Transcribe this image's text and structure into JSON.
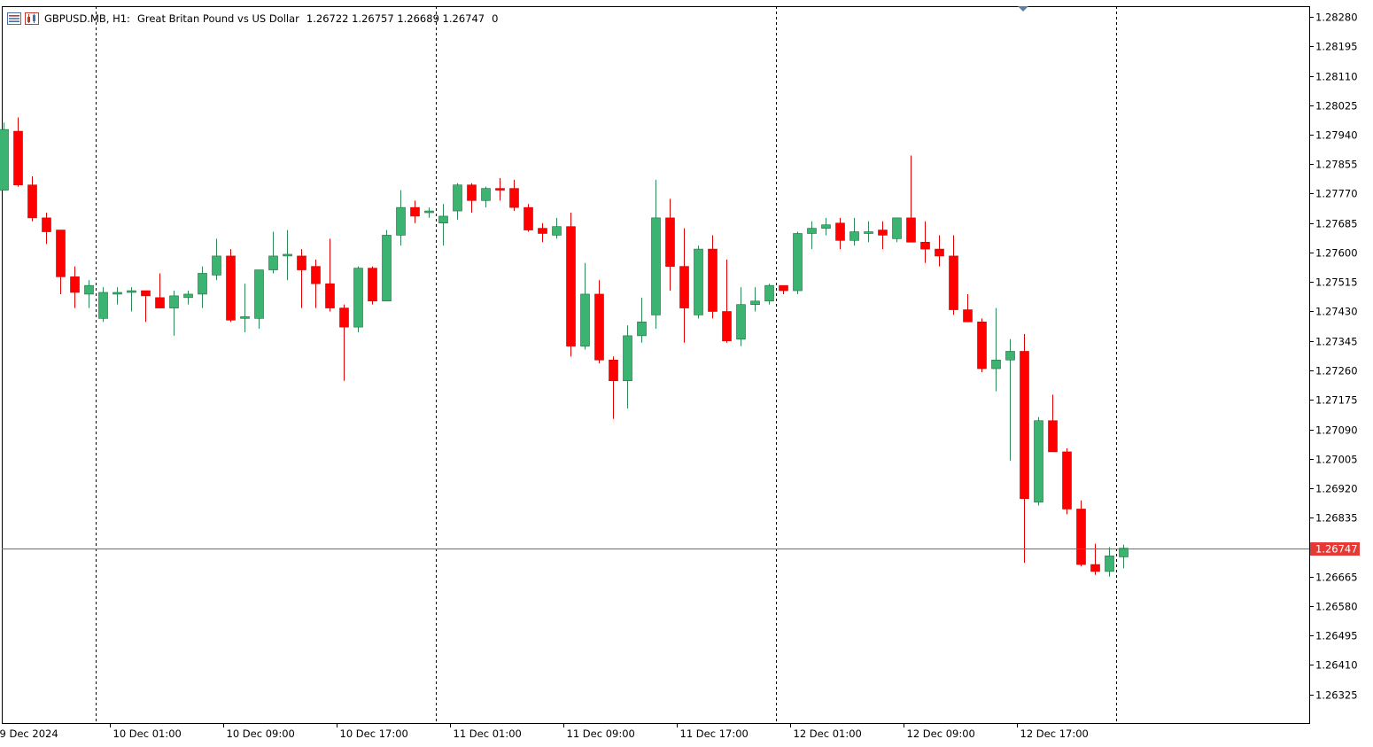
{
  "header": {
    "symbol": "GBPUSD.MB, H1:",
    "description": "Great Britan Pound vs US Dollar",
    "ohlc": "1.26722 1.26757 1.26689 1.26747",
    "spread": "0"
  },
  "colors": {
    "bull": "#3cb371",
    "bear": "#ff0000",
    "wick_bull": "#2e8b57",
    "wick_bear": "#e00000",
    "price_line": "#e53935",
    "grid": "#000000",
    "background": "#ffffff",
    "axis": "#000000"
  },
  "chart_data": {
    "type": "candlestick",
    "title": "GBPUSD.MB, H1",
    "current_price_label": "1.26747",
    "current_price": 1.26747,
    "ylim": [
      1.2624,
      1.2831
    ],
    "y_ticks": [
      "1.28280",
      "1.28195",
      "1.28110",
      "1.28025",
      "1.27940",
      "1.27855",
      "1.27770",
      "1.27685",
      "1.27600",
      "1.27515",
      "1.27430",
      "1.27345",
      "1.27260",
      "1.27175",
      "1.27090",
      "1.27005",
      "1.26920",
      "1.26835",
      "1.26665",
      "1.26580",
      "1.26495",
      "1.26410",
      "1.26325"
    ],
    "x_labels": [
      {
        "text": "9 Dec 2024",
        "index": -0.5
      },
      {
        "text": "10 Dec 01:00",
        "index": 7.5
      },
      {
        "text": "10 Dec 09:00",
        "index": 15.5
      },
      {
        "text": "10 Dec 17:00",
        "index": 23.5
      },
      {
        "text": "11 Dec 01:00",
        "index": 31.5
      },
      {
        "text": "11 Dec 09:00",
        "index": 39.5
      },
      {
        "text": "11 Dec 17:00",
        "index": 47.5
      },
      {
        "text": "12 Dec 01:00",
        "index": 55.5
      },
      {
        "text": "12 Dec 09:00",
        "index": 63.5
      },
      {
        "text": "12 Dec 17:00",
        "index": 71.5
      }
    ],
    "day_separators": [
      6.5,
      30.5,
      54.5,
      78.5
    ],
    "candles": [
      {
        "o": 1.2778,
        "h": 1.27975,
        "l": 1.2778,
        "c": 1.27955
      },
      {
        "o": 1.2795,
        "h": 1.2799,
        "l": 1.2779,
        "c": 1.27795
      },
      {
        "o": 1.27795,
        "h": 1.2782,
        "l": 1.2769,
        "c": 1.277
      },
      {
        "o": 1.277,
        "h": 1.27715,
        "l": 1.27625,
        "c": 1.2766
      },
      {
        "o": 1.27665,
        "h": 1.27665,
        "l": 1.2748,
        "c": 1.2753
      },
      {
        "o": 1.2753,
        "h": 1.2756,
        "l": 1.2744,
        "c": 1.27485
      },
      {
        "o": 1.2748,
        "h": 1.2752,
        "l": 1.2744,
        "c": 1.27505
      },
      {
        "o": 1.2741,
        "h": 1.275,
        "l": 1.274,
        "c": 1.27485
      },
      {
        "o": 1.2748,
        "h": 1.275,
        "l": 1.2745,
        "c": 1.27485
      },
      {
        "o": 1.27485,
        "h": 1.275,
        "l": 1.2743,
        "c": 1.2749
      },
      {
        "o": 1.2749,
        "h": 1.2749,
        "l": 1.274,
        "c": 1.27475
      },
      {
        "o": 1.2747,
        "h": 1.2754,
        "l": 1.2744,
        "c": 1.2744
      },
      {
        "o": 1.2744,
        "h": 1.2749,
        "l": 1.2736,
        "c": 1.27475
      },
      {
        "o": 1.2747,
        "h": 1.2749,
        "l": 1.2745,
        "c": 1.2748
      },
      {
        "o": 1.2748,
        "h": 1.2756,
        "l": 1.2744,
        "c": 1.2754
      },
      {
        "o": 1.27535,
        "h": 1.2764,
        "l": 1.2752,
        "c": 1.2759
      },
      {
        "o": 1.2759,
        "h": 1.2761,
        "l": 1.274,
        "c": 1.27405
      },
      {
        "o": 1.2741,
        "h": 1.2751,
        "l": 1.2737,
        "c": 1.27415
      },
      {
        "o": 1.2741,
        "h": 1.2755,
        "l": 1.2738,
        "c": 1.2755
      },
      {
        "o": 1.2755,
        "h": 1.2766,
        "l": 1.2754,
        "c": 1.2759
      },
      {
        "o": 1.2759,
        "h": 1.27665,
        "l": 1.2752,
        "c": 1.27595
      },
      {
        "o": 1.2759,
        "h": 1.2761,
        "l": 1.2744,
        "c": 1.2755
      },
      {
        "o": 1.2756,
        "h": 1.2758,
        "l": 1.2744,
        "c": 1.2751
      },
      {
        "o": 1.2751,
        "h": 1.2764,
        "l": 1.2743,
        "c": 1.2744
      },
      {
        "o": 1.2744,
        "h": 1.2745,
        "l": 1.2723,
        "c": 1.27385
      },
      {
        "o": 1.27385,
        "h": 1.2756,
        "l": 1.2737,
        "c": 1.27555
      },
      {
        "o": 1.27555,
        "h": 1.2756,
        "l": 1.2745,
        "c": 1.2746
      },
      {
        "o": 1.2746,
        "h": 1.27665,
        "l": 1.2746,
        "c": 1.2765
      },
      {
        "o": 1.2765,
        "h": 1.2778,
        "l": 1.2762,
        "c": 1.2773
      },
      {
        "o": 1.2773,
        "h": 1.2775,
        "l": 1.27685,
        "c": 1.27705
      },
      {
        "o": 1.27715,
        "h": 1.2773,
        "l": 1.277,
        "c": 1.2772
      },
      {
        "o": 1.27685,
        "h": 1.2774,
        "l": 1.2762,
        "c": 1.27705
      },
      {
        "o": 1.2772,
        "h": 1.278,
        "l": 1.27695,
        "c": 1.27795
      },
      {
        "o": 1.27795,
        "h": 1.278,
        "l": 1.27715,
        "c": 1.2775
      },
      {
        "o": 1.2775,
        "h": 1.2779,
        "l": 1.2773,
        "c": 1.27785
      },
      {
        "o": 1.27785,
        "h": 1.27815,
        "l": 1.2775,
        "c": 1.2778
      },
      {
        "o": 1.27785,
        "h": 1.2781,
        "l": 1.2772,
        "c": 1.2773
      },
      {
        "o": 1.2773,
        "h": 1.2774,
        "l": 1.2766,
        "c": 1.27665
      },
      {
        "o": 1.2767,
        "h": 1.27685,
        "l": 1.2763,
        "c": 1.27655
      },
      {
        "o": 1.2765,
        "h": 1.277,
        "l": 1.2764,
        "c": 1.27675
      },
      {
        "o": 1.27675,
        "h": 1.27715,
        "l": 1.273,
        "c": 1.2733
      },
      {
        "o": 1.2733,
        "h": 1.2757,
        "l": 1.2732,
        "c": 1.2748
      },
      {
        "o": 1.2748,
        "h": 1.2752,
        "l": 1.2728,
        "c": 1.2729
      },
      {
        "o": 1.2729,
        "h": 1.273,
        "l": 1.2712,
        "c": 1.2723
      },
      {
        "o": 1.2723,
        "h": 1.2739,
        "l": 1.2715,
        "c": 1.2736
      },
      {
        "o": 1.2736,
        "h": 1.2747,
        "l": 1.2734,
        "c": 1.274
      },
      {
        "o": 1.2742,
        "h": 1.2781,
        "l": 1.2738,
        "c": 1.277
      },
      {
        "o": 1.277,
        "h": 1.27755,
        "l": 1.2749,
        "c": 1.2756
      },
      {
        "o": 1.2756,
        "h": 1.2767,
        "l": 1.2734,
        "c": 1.2744
      },
      {
        "o": 1.2742,
        "h": 1.2762,
        "l": 1.2741,
        "c": 1.2761
      },
      {
        "o": 1.2761,
        "h": 1.2765,
        "l": 1.2741,
        "c": 1.2743
      },
      {
        "o": 1.2743,
        "h": 1.2758,
        "l": 1.2734,
        "c": 1.27345
      },
      {
        "o": 1.2735,
        "h": 1.275,
        "l": 1.2733,
        "c": 1.2745
      },
      {
        "o": 1.2745,
        "h": 1.275,
        "l": 1.2743,
        "c": 1.2746
      },
      {
        "o": 1.2746,
        "h": 1.2751,
        "l": 1.2745,
        "c": 1.27505
      },
      {
        "o": 1.27505,
        "h": 1.275,
        "l": 1.2748,
        "c": 1.2749
      },
      {
        "o": 1.2749,
        "h": 1.2766,
        "l": 1.2748,
        "c": 1.27655
      },
      {
        "o": 1.27655,
        "h": 1.2769,
        "l": 1.2761,
        "c": 1.2767
      },
      {
        "o": 1.2767,
        "h": 1.277,
        "l": 1.2765,
        "c": 1.2768
      },
      {
        "o": 1.27685,
        "h": 1.277,
        "l": 1.2761,
        "c": 1.27635
      },
      {
        "o": 1.27635,
        "h": 1.277,
        "l": 1.2762,
        "c": 1.2766
      },
      {
        "o": 1.27655,
        "h": 1.2769,
        "l": 1.2763,
        "c": 1.2766
      },
      {
        "o": 1.27665,
        "h": 1.2769,
        "l": 1.2761,
        "c": 1.2765
      },
      {
        "o": 1.2764,
        "h": 1.277,
        "l": 1.2763,
        "c": 1.277
      },
      {
        "o": 1.277,
        "h": 1.2788,
        "l": 1.2763,
        "c": 1.2763
      },
      {
        "o": 1.2763,
        "h": 1.2769,
        "l": 1.2757,
        "c": 1.2761
      },
      {
        "o": 1.2761,
        "h": 1.2765,
        "l": 1.2756,
        "c": 1.2759
      },
      {
        "o": 1.2759,
        "h": 1.2765,
        "l": 1.2742,
        "c": 1.27435
      },
      {
        "o": 1.27435,
        "h": 1.2748,
        "l": 1.274,
        "c": 1.274
      },
      {
        "o": 1.274,
        "h": 1.2741,
        "l": 1.27255,
        "c": 1.27265
      },
      {
        "o": 1.27265,
        "h": 1.2744,
        "l": 1.272,
        "c": 1.2729
      },
      {
        "o": 1.2729,
        "h": 1.2735,
        "l": 1.27,
        "c": 1.27315
      },
      {
        "o": 1.27315,
        "h": 1.27365,
        "l": 1.26705,
        "c": 1.2689
      },
      {
        "o": 1.2688,
        "h": 1.27125,
        "l": 1.2687,
        "c": 1.27115
      },
      {
        "o": 1.27115,
        "h": 1.2719,
        "l": 1.2703,
        "c": 1.27025
      },
      {
        "o": 1.27025,
        "h": 1.27035,
        "l": 1.26845,
        "c": 1.2686
      },
      {
        "o": 1.2686,
        "h": 1.26885,
        "l": 1.26695,
        "c": 1.267
      },
      {
        "o": 1.267,
        "h": 1.2676,
        "l": 1.2667,
        "c": 1.2668
      },
      {
        "o": 1.2668,
        "h": 1.2675,
        "l": 1.26665,
        "c": 1.26725
      },
      {
        "o": 1.26722,
        "h": 1.26757,
        "l": 1.26689,
        "c": 1.26747
      }
    ]
  }
}
